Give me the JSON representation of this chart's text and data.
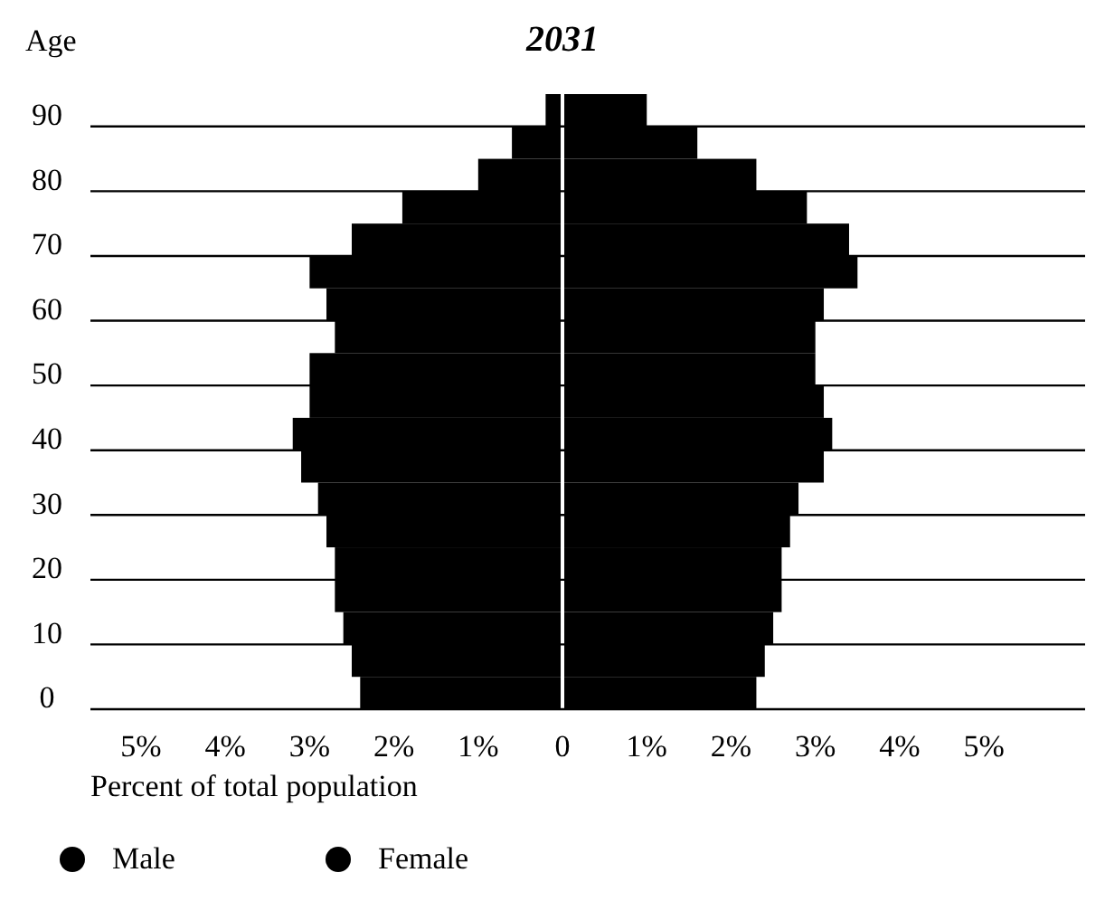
{
  "chart_data": {
    "type": "bar",
    "orientation": "horizontal",
    "stacked": true,
    "title": "2031",
    "ylabel": "Age",
    "xlabel": "Percent of total population",
    "x": [
      2.5,
      7.5,
      12.5,
      17.5,
      22.5,
      27.5,
      32.5,
      37.5,
      42.5,
      47.5,
      52.5,
      57.5,
      62.5,
      67.5,
      72.5,
      77.5,
      82.5,
      87.5,
      92.5
    ],
    "series": [
      {
        "name": "Male",
        "color": "#000000",
        "values": [
          -2.4,
          -2.5,
          -2.6,
          -2.7,
          -2.7,
          -2.8,
          -2.9,
          -3.1,
          -3.2,
          -3.0,
          -3.0,
          -2.7,
          -2.8,
          -3.0,
          -2.5,
          -1.9,
          -1.0,
          -0.6,
          -0.2
        ]
      },
      {
        "name": "Female",
        "color": "#000000",
        "values": [
          2.3,
          2.4,
          2.5,
          2.6,
          2.6,
          2.7,
          2.8,
          3.1,
          3.2,
          3.1,
          3.0,
          3.0,
          3.1,
          3.5,
          3.4,
          2.9,
          2.3,
          1.6,
          1.0
        ]
      }
    ],
    "xlim": [
      -5.6,
      6.2
    ],
    "xticks": [
      {
        "value": -5,
        "label": "5%"
      },
      {
        "value": -4,
        "label": "4%"
      },
      {
        "value": -3,
        "label": "3%"
      },
      {
        "value": -2,
        "label": "2%"
      },
      {
        "value": -1,
        "label": "1%"
      },
      0,
      {
        "value": 1,
        "label": "1%"
      },
      {
        "value": 2,
        "label": "2%"
      },
      {
        "value": 3,
        "label": "3%"
      },
      {
        "value": 4,
        "label": "4%"
      },
      {
        "value": 5,
        "label": "5%"
      }
    ],
    "ylim": [
      0,
      95
    ],
    "yticks": [
      0,
      10,
      20,
      30,
      40,
      50,
      60,
      70,
      80,
      90
    ],
    "grid": "y",
    "legend": "bottom left"
  }
}
